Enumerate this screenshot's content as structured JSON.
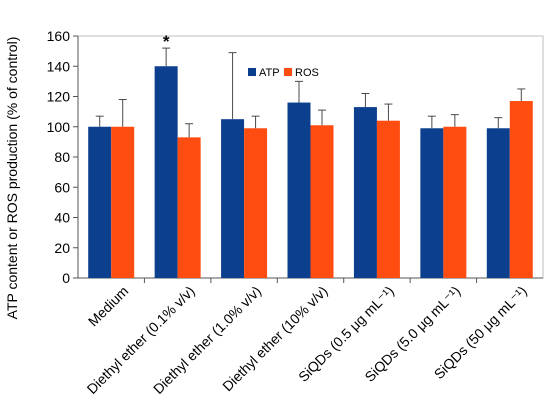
{
  "chart_data": {
    "type": "bar",
    "ylabel": "ATP content or ROS production (% of control)",
    "xlabel": "",
    "ylim": [
      0,
      160
    ],
    "yticks": [
      0,
      20,
      40,
      60,
      80,
      100,
      120,
      140,
      160
    ],
    "grid": false,
    "legend": "top-center",
    "categories": [
      "Medium",
      "Diethyl ether (0.1% v/v)",
      "Diethyl ether (1.0% v/v)",
      "Diethyl ether (10% v/v)",
      "SiQDs (0.5 μg mL⁻¹)",
      "SiQDs (5.0 μg mL⁻¹)",
      "SiQDs (50 μg mL⁻¹)"
    ],
    "series": [
      {
        "name": "ATP",
        "color": "#0d3f8f",
        "values": [
          100,
          140,
          105,
          116,
          113,
          99,
          99
        ],
        "errors": [
          7,
          12,
          44,
          14,
          9,
          8,
          7
        ]
      },
      {
        "name": "ROS",
        "color": "#ff4d12",
        "values": [
          100,
          93,
          99,
          101,
          104,
          100,
          117
        ],
        "errors": [
          18,
          9,
          8,
          10,
          11,
          8,
          8
        ]
      }
    ],
    "annotations": [
      {
        "text": "*",
        "category_index": 1,
        "series_index": 0
      }
    ]
  }
}
